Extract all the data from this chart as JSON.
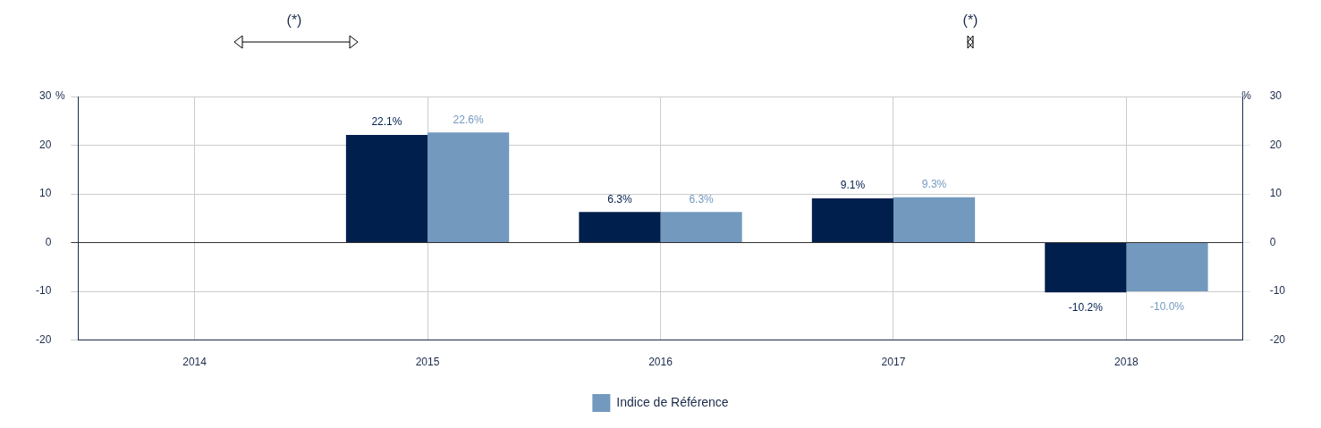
{
  "chart_data": {
    "type": "bar",
    "categories": [
      "2014",
      "2015",
      "2016",
      "2017",
      "2018"
    ],
    "series": [
      {
        "color": "#001f4d",
        "values": [
          null,
          22.1,
          6.3,
          9.1,
          -10.2
        ],
        "value_labels": [
          null,
          "22.1%",
          "6.3%",
          "9.1%",
          "-10.2%"
        ]
      },
      {
        "name": "Indice de Référence",
        "color": "#7399bf",
        "values": [
          null,
          22.6,
          6.3,
          9.3,
          -10.0
        ],
        "value_labels": [
          null,
          "22.6%",
          "6.3%",
          "9.3%",
          "-10.0%"
        ]
      }
    ],
    "ylabel": "%",
    "y2label": "%",
    "ylim": [
      -20,
      30
    ],
    "yticks": [
      -20,
      -10,
      0,
      10,
      20,
      30
    ],
    "y2lim": [
      -20,
      30
    ],
    "y2ticks": [
      -20,
      -10,
      0,
      10,
      20,
      30
    ],
    "annotations": [
      "(*)",
      "(*)"
    ],
    "grid": true,
    "legend": "bottom"
  }
}
